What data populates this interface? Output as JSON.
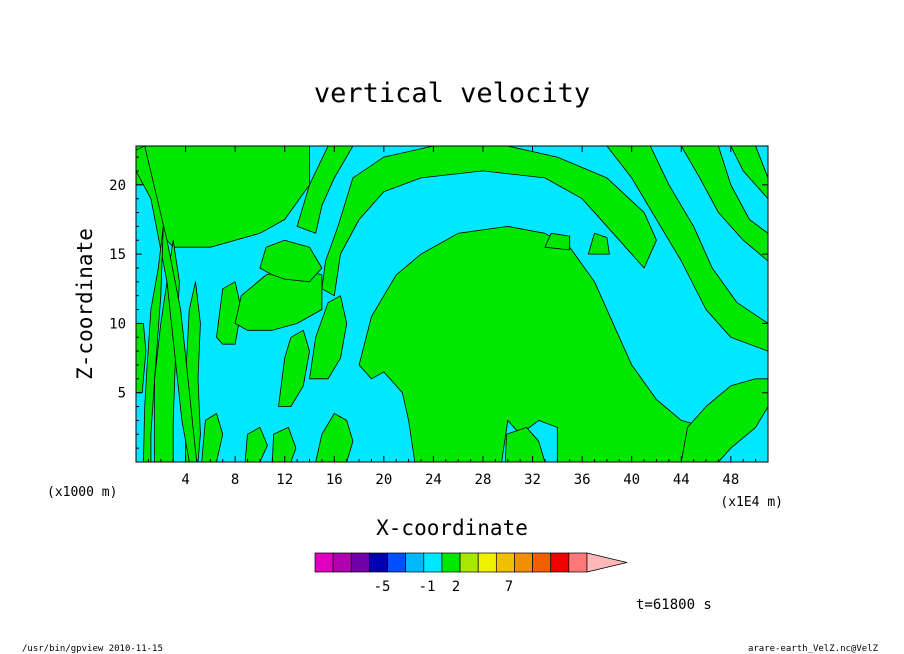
{
  "chart_data": {
    "type": "heatmap",
    "title": "vertical velocity",
    "xlabel": "X-coordinate",
    "ylabel": "Z-coordinate",
    "x_unit_left": "(x1000 m)",
    "x_unit_right": "(x1E4 m)",
    "xlim": [
      0,
      51
    ],
    "ylim": [
      0,
      22.8
    ],
    "x_ticks": [
      "4",
      "8",
      "12",
      "16",
      "20",
      "24",
      "28",
      "32",
      "36",
      "40",
      "44",
      "48"
    ],
    "y_ticks": [
      "5",
      "10",
      "15",
      "20"
    ],
    "x_tick_values": [
      4,
      8,
      12,
      16,
      20,
      24,
      28,
      32,
      36,
      40,
      44,
      48
    ],
    "y_tick_values": [
      5,
      10,
      15,
      20
    ],
    "contour_colors": {
      "negative": "#00e8ff",
      "positive": "#00e800",
      "line": "#000000"
    },
    "colorbar": {
      "colors": [
        "#e000c0",
        "#b000b0",
        "#7000a8",
        "#0000b0",
        "#0050ff",
        "#00b8ff",
        "#00e8ff",
        "#00e800",
        "#a8e800",
        "#f0f000",
        "#f0c000",
        "#f09000",
        "#f06000",
        "#f00000",
        "#ff7878",
        "#ffb8b8"
      ],
      "tick_labels": [
        "-5",
        "-1",
        "2",
        "7"
      ],
      "extend": "max"
    },
    "time_label": "t=61800 s",
    "regions": [
      {
        "sign": "positive",
        "points": [
          [
            0,
            20
          ],
          [
            0,
            22.8
          ],
          [
            2,
            22.8
          ],
          [
            4,
            22.8
          ],
          [
            10,
            22.8
          ],
          [
            14,
            22.8
          ],
          [
            14,
            20
          ],
          [
            12,
            17.5
          ],
          [
            10,
            16.5
          ],
          [
            6,
            15.5
          ],
          [
            3,
            15.5
          ],
          [
            2,
            16.5
          ],
          [
            1.5,
            18.5
          ],
          [
            1,
            20
          ]
        ]
      },
      {
        "sign": "positive",
        "points": [
          [
            1.5,
            0
          ],
          [
            1.5,
            6
          ],
          [
            2,
            10
          ],
          [
            2.5,
            13
          ],
          [
            3,
            16
          ],
          [
            3.5,
            13
          ],
          [
            3.2,
            8
          ],
          [
            3,
            3
          ],
          [
            3,
            0
          ]
        ]
      },
      {
        "sign": "positive",
        "points": [
          [
            4,
            0
          ],
          [
            4,
            6
          ],
          [
            4.3,
            11
          ],
          [
            4.8,
            13
          ],
          [
            5.2,
            10
          ],
          [
            5,
            6
          ],
          [
            5.2,
            2
          ],
          [
            5,
            0
          ]
        ]
      },
      {
        "sign": "positive",
        "points": [
          [
            0,
            22.5
          ],
          [
            0.7,
            22.8
          ],
          [
            2.5,
            16
          ],
          [
            3.6,
            11
          ],
          [
            4.2,
            6
          ],
          [
            4.6,
            2.5
          ],
          [
            4.9,
            0
          ],
          [
            4.3,
            0
          ],
          [
            3.7,
            3
          ],
          [
            3.1,
            8
          ],
          [
            2.5,
            13
          ],
          [
            1.2,
            19
          ],
          [
            0,
            21
          ]
        ]
      },
      {
        "sign": "positive",
        "points": [
          [
            0.6,
            0
          ],
          [
            0.7,
            4
          ],
          [
            0.9,
            7
          ],
          [
            1.2,
            11
          ],
          [
            1.8,
            14
          ],
          [
            2.2,
            17
          ],
          [
            2,
            12
          ],
          [
            1.5,
            6
          ],
          [
            1.2,
            2
          ],
          [
            1.2,
            0
          ]
        ]
      },
      {
        "sign": "positive",
        "points": [
          [
            0,
            5
          ],
          [
            0,
            10
          ],
          [
            0.6,
            10
          ],
          [
            0.8,
            8
          ],
          [
            0.5,
            5
          ]
        ]
      },
      {
        "sign": "positive",
        "points": [
          [
            6.5,
            9
          ],
          [
            7,
            12.5
          ],
          [
            8,
            13
          ],
          [
            8.5,
            11
          ],
          [
            8,
            8.5
          ],
          [
            7,
            8.5
          ]
        ]
      },
      {
        "sign": "positive",
        "points": [
          [
            8,
            10
          ],
          [
            8.5,
            12
          ],
          [
            10.5,
            13.5
          ],
          [
            13,
            14
          ],
          [
            15,
            13.5
          ],
          [
            15,
            11
          ],
          [
            13,
            10
          ],
          [
            11,
            9.5
          ],
          [
            9,
            9.5
          ]
        ]
      },
      {
        "sign": "positive",
        "points": [
          [
            10,
            14
          ],
          [
            10.5,
            15.5
          ],
          [
            12,
            16
          ],
          [
            14,
            15.5
          ],
          [
            15,
            14
          ],
          [
            14,
            13
          ],
          [
            12,
            13.2
          ],
          [
            11,
            13.5
          ]
        ]
      },
      {
        "sign": "positive",
        "points": [
          [
            11.5,
            4
          ],
          [
            12,
            7.5
          ],
          [
            12.5,
            9
          ],
          [
            13.5,
            9.5
          ],
          [
            14,
            8
          ],
          [
            13.5,
            5.5
          ],
          [
            12.5,
            4
          ]
        ]
      },
      {
        "sign": "positive",
        "points": [
          [
            14,
            6
          ],
          [
            14.5,
            9
          ],
          [
            15.5,
            11.5
          ],
          [
            16.5,
            12
          ],
          [
            17,
            10
          ],
          [
            16.5,
            7.5
          ],
          [
            15.5,
            6
          ]
        ]
      },
      {
        "sign": "positive",
        "points": [
          [
            5.3,
            0
          ],
          [
            5.6,
            3
          ],
          [
            6.5,
            3.5
          ],
          [
            7,
            2
          ],
          [
            6.5,
            0
          ]
        ]
      },
      {
        "sign": "positive",
        "points": [
          [
            8.8,
            0
          ],
          [
            9,
            2
          ],
          [
            10,
            2.5
          ],
          [
            10.6,
            1.2
          ],
          [
            10,
            0
          ]
        ]
      },
      {
        "sign": "positive",
        "points": [
          [
            11,
            0
          ],
          [
            11.1,
            2
          ],
          [
            12.3,
            2.5
          ],
          [
            12.9,
            1
          ],
          [
            12.5,
            0
          ]
        ]
      },
      {
        "sign": "positive",
        "points": [
          [
            14.5,
            0
          ],
          [
            15,
            2
          ],
          [
            16,
            3.5
          ],
          [
            17,
            3
          ],
          [
            17.5,
            1.5
          ],
          [
            17,
            0
          ]
        ]
      },
      {
        "sign": "positive",
        "points": [
          [
            16,
            12
          ],
          [
            16.5,
            15
          ],
          [
            18,
            17.5
          ],
          [
            20,
            19.5
          ],
          [
            23,
            20.5
          ],
          [
            28,
            21
          ],
          [
            33,
            20.5
          ],
          [
            36,
            19
          ],
          [
            39,
            16
          ],
          [
            41,
            14
          ],
          [
            42,
            16
          ],
          [
            41,
            18
          ],
          [
            38,
            20.5
          ],
          [
            34,
            22
          ],
          [
            30,
            22.8
          ],
          [
            24,
            22.8
          ],
          [
            20,
            22
          ],
          [
            17.5,
            20.5
          ],
          [
            16.3,
            17
          ],
          [
            15.3,
            14.5
          ],
          [
            15,
            12.5
          ]
        ]
      },
      {
        "sign": "positive",
        "points": [
          [
            13,
            17
          ],
          [
            14,
            20
          ],
          [
            15.5,
            22.8
          ],
          [
            17.5,
            22.8
          ],
          [
            16,
            20.5
          ],
          [
            15,
            18.5
          ],
          [
            14.5,
            16.5
          ]
        ]
      },
      {
        "sign": "positive",
        "points": [
          [
            18,
            7
          ],
          [
            19,
            10.5
          ],
          [
            21,
            13.5
          ],
          [
            23,
            15
          ],
          [
            26,
            16.5
          ],
          [
            30,
            17
          ],
          [
            33,
            16.5
          ],
          [
            35,
            15.5
          ],
          [
            37,
            13
          ],
          [
            38.5,
            10
          ],
          [
            40,
            7
          ],
          [
            42,
            4.5
          ],
          [
            44,
            3
          ],
          [
            46,
            2.5
          ],
          [
            46,
            0
          ],
          [
            34,
            0
          ],
          [
            34,
            2.5
          ],
          [
            32.5,
            3
          ],
          [
            31,
            2
          ],
          [
            30,
            3
          ],
          [
            29.5,
            0
          ],
          [
            22.5,
            0
          ],
          [
            22,
            3
          ],
          [
            21.5,
            5
          ],
          [
            20,
            6.5
          ],
          [
            19,
            6
          ]
        ]
      },
      {
        "sign": "positive",
        "points": [
          [
            29.8,
            0
          ],
          [
            29.9,
            2
          ],
          [
            31.5,
            2.5
          ],
          [
            32.5,
            1.5
          ],
          [
            33,
            0
          ]
        ]
      },
      {
        "sign": "positive",
        "points": [
          [
            44,
            0
          ],
          [
            44.5,
            2.5
          ],
          [
            46,
            4
          ],
          [
            48,
            5.5
          ],
          [
            50,
            6
          ],
          [
            51,
            6
          ],
          [
            51,
            4
          ],
          [
            50,
            2.5
          ],
          [
            48,
            1
          ],
          [
            47,
            0
          ]
        ]
      },
      {
        "sign": "positive",
        "points": [
          [
            38,
            22.8
          ],
          [
            40,
            20.5
          ],
          [
            42,
            17.5
          ],
          [
            44,
            14.5
          ],
          [
            46,
            11
          ],
          [
            48,
            9
          ],
          [
            51,
            8
          ],
          [
            51,
            10
          ],
          [
            48.5,
            11.5
          ],
          [
            46.5,
            14
          ],
          [
            45,
            17
          ],
          [
            43,
            20
          ],
          [
            41.5,
            22.8
          ]
        ]
      },
      {
        "sign": "positive",
        "points": [
          [
            44,
            22.8
          ],
          [
            45.5,
            20.5
          ],
          [
            47,
            18
          ],
          [
            49,
            16
          ],
          [
            51,
            14.5
          ],
          [
            51,
            16.5
          ],
          [
            49.5,
            17.5
          ],
          [
            48,
            20
          ],
          [
            47,
            22.8
          ]
        ]
      },
      {
        "sign": "positive",
        "points": [
          [
            48,
            22.8
          ],
          [
            49,
            21
          ],
          [
            51,
            19
          ],
          [
            51,
            20.5
          ],
          [
            50,
            22.8
          ]
        ]
      },
      {
        "sign": "positive",
        "points": [
          [
            36.5,
            15
          ],
          [
            37,
            16.5
          ],
          [
            38,
            16.2
          ],
          [
            38.2,
            15
          ]
        ]
      },
      {
        "sign": "positive",
        "points": [
          [
            33,
            15.5
          ],
          [
            33.5,
            16.5
          ],
          [
            35,
            16.3
          ],
          [
            35,
            15.3
          ]
        ]
      }
    ]
  },
  "footer": {
    "left": "/usr/bin/gpview   2010-11-15",
    "right": "arare-earth_VelZ.nc@VelZ"
  }
}
